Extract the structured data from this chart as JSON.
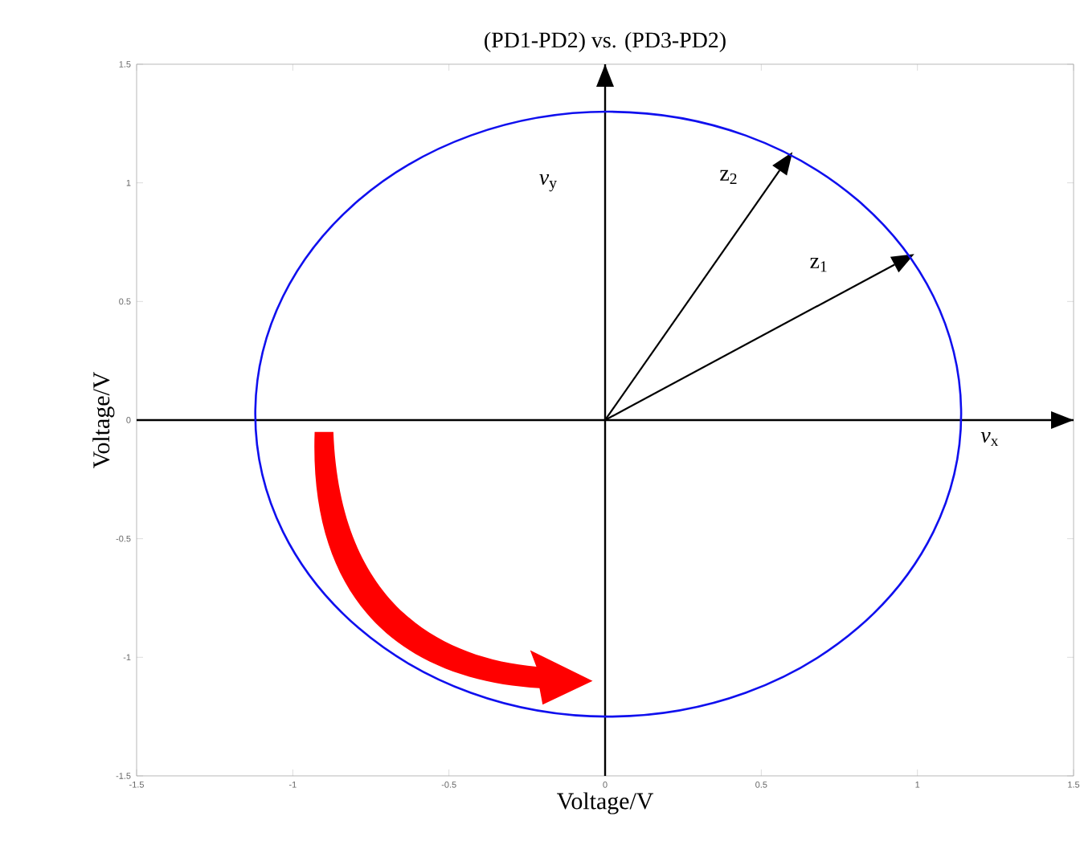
{
  "chart_data": {
    "type": "line",
    "title": "(PD1-PD2) vs. (PD3-PD2)",
    "xlabel": "Voltage/V",
    "ylabel": "Voltage/V",
    "annotations": [
      "z$_{1}$",
      "z$_{2}$"
    ],
    "xlim": [
      -1.5,
      1.5
    ],
    "ylim": [
      -1.5,
      1.5
    ],
    "xticks": [
      -1.5,
      -1,
      -0.5,
      0,
      0.5,
      1,
      1.5
    ],
    "yticks": [
      -1.5,
      -1,
      -0.5,
      0,
      0.5,
      1,
      1.5
    ],
    "grid": false,
    "ref_lines": [
      {
        "axis": "x",
        "value": 0,
        "label": "*v*$_{y}$",
        "color": "#000000"
      },
      {
        "axis": "y",
        "value": 0,
        "label": "*v*$_{x}$",
        "color": "#000000"
      }
    ]
  }
}
